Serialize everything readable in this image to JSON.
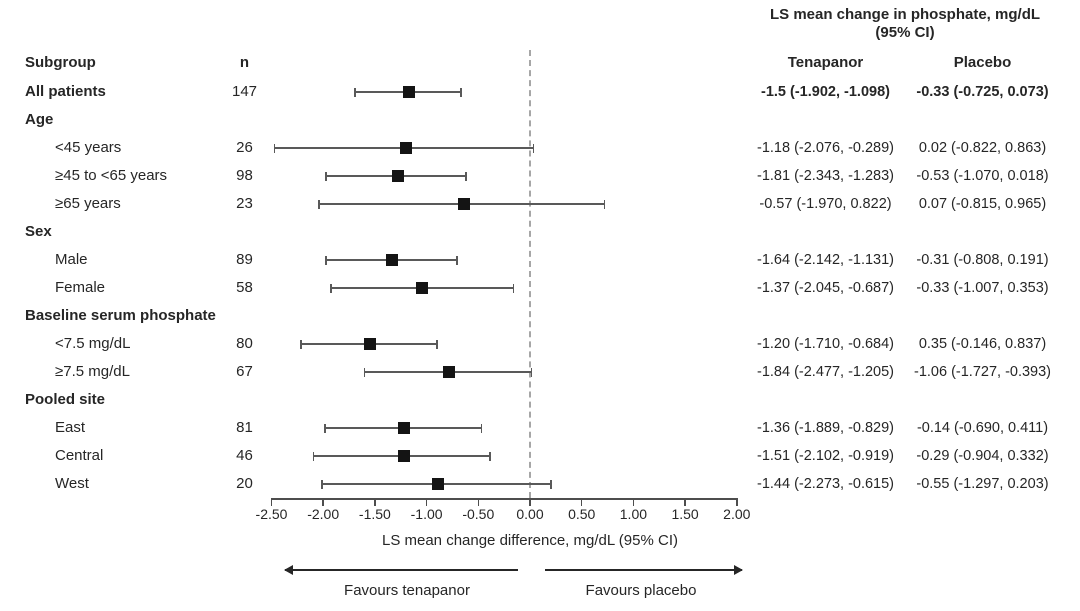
{
  "header": {
    "title_line1": "LS mean change in phosphate, mg/dL",
    "title_line2": "(95% CI)",
    "col_subgroup": "Subgroup",
    "col_n": "n",
    "col_tenapanor": "Tenapanor",
    "col_placebo": "Placebo"
  },
  "colors": {
    "text": "#262626",
    "marker": "#141414",
    "ci_line": "#595959",
    "zero_line_dashed": "#a6a6a6",
    "axis": "#4d4d4d"
  },
  "chart_data": {
    "type": "forest",
    "title": "LS mean change in phosphate, mg/dL (95% CI)",
    "xlabel": "LS mean change difference, mg/dL (95% CI)",
    "favours_left": "Favours tenapanor",
    "favours_right": "Favours placebo",
    "axis": {
      "min": -2.5,
      "max": 2.0,
      "step": 0.5,
      "zero_line": 0.0,
      "tick_labels": [
        "-2.50",
        "-2.00",
        "-1.50",
        "-1.00",
        "-0.50",
        "0.00",
        "0.50",
        "1.00",
        "1.50",
        "2.00"
      ]
    },
    "rows": [
      {
        "label": "All patients",
        "section": false,
        "indent": false,
        "label_bold": true,
        "values_bold": true,
        "n": "147",
        "estimate": -1.17,
        "ci_low": -1.7,
        "ci_high": -0.66,
        "tenapanor": "-1.5 (-1.902, -1.098)",
        "placebo": "-0.33 (-0.725, 0.073)"
      },
      {
        "label": "Age",
        "section": true
      },
      {
        "label": "<45 years",
        "indent": true,
        "n": "26",
        "estimate": -1.2,
        "ci_low": -2.48,
        "ci_high": 0.04,
        "tenapanor": "-1.18 (-2.076, -0.289)",
        "placebo": "0.02 (-0.822, 0.863)"
      },
      {
        "label": "≥45 to <65 years",
        "indent": true,
        "n": "98",
        "estimate": -1.28,
        "ci_low": -1.98,
        "ci_high": -0.61,
        "tenapanor": "-1.81 (-2.343, -1.283)",
        "placebo": "-0.53 (-1.070, 0.018)"
      },
      {
        "label": "≥65 years",
        "indent": true,
        "n": "23",
        "estimate": -0.64,
        "ci_low": -2.05,
        "ci_high": 0.73,
        "tenapanor": "-0.57 (-1.970, 0.822)",
        "placebo": "0.07 (-0.815, 0.965)"
      },
      {
        "label": "Sex",
        "section": true
      },
      {
        "label": "Male",
        "indent": true,
        "n": "89",
        "estimate": -1.33,
        "ci_low": -1.98,
        "ci_high": -0.7,
        "tenapanor": "-1.64 (-2.142, -1.131)",
        "placebo": "-0.31 (-0.808, 0.191)"
      },
      {
        "label": "Female",
        "indent": true,
        "n": "58",
        "estimate": -1.04,
        "ci_low": -1.93,
        "ci_high": -0.15,
        "tenapanor": "-1.37 (-2.045, -0.687)",
        "placebo": "-0.33 (-1.007, 0.353)"
      },
      {
        "label": "Baseline serum phosphate",
        "section": true
      },
      {
        "label": "<7.5 mg/dL",
        "indent": true,
        "n": "80",
        "estimate": -1.55,
        "ci_low": -2.22,
        "ci_high": -0.89,
        "tenapanor": "-1.20 (-1.710, -0.684)",
        "placebo": "0.35 (-0.146, 0.837)"
      },
      {
        "label": "≥7.5 mg/dL",
        "indent": true,
        "n": "67",
        "estimate": -0.78,
        "ci_low": -1.61,
        "ci_high": 0.02,
        "tenapanor": "-1.84 (-2.477, -1.205)",
        "placebo": "-1.06 (-1.727, -0.393)"
      },
      {
        "label": "Pooled site",
        "section": true
      },
      {
        "label": "East",
        "indent": true,
        "n": "81",
        "estimate": -1.22,
        "ci_low": -1.99,
        "ci_high": -0.46,
        "tenapanor": "-1.36 (-1.889, -0.829)",
        "placebo": "-0.14 (-0.690, 0.411)"
      },
      {
        "label": "Central",
        "indent": true,
        "n": "46",
        "estimate": -1.22,
        "ci_low": -2.1,
        "ci_high": -0.38,
        "tenapanor": "-1.51 (-2.102, -0.919)",
        "placebo": "-0.29 (-0.904, 0.332)"
      },
      {
        "label": "West",
        "indent": true,
        "n": "20",
        "estimate": -0.89,
        "ci_low": -2.02,
        "ci_high": 0.21,
        "tenapanor": "-1.44 (-2.273, -0.615)",
        "placebo": "-0.55 (-1.297, 0.203)"
      }
    ]
  }
}
